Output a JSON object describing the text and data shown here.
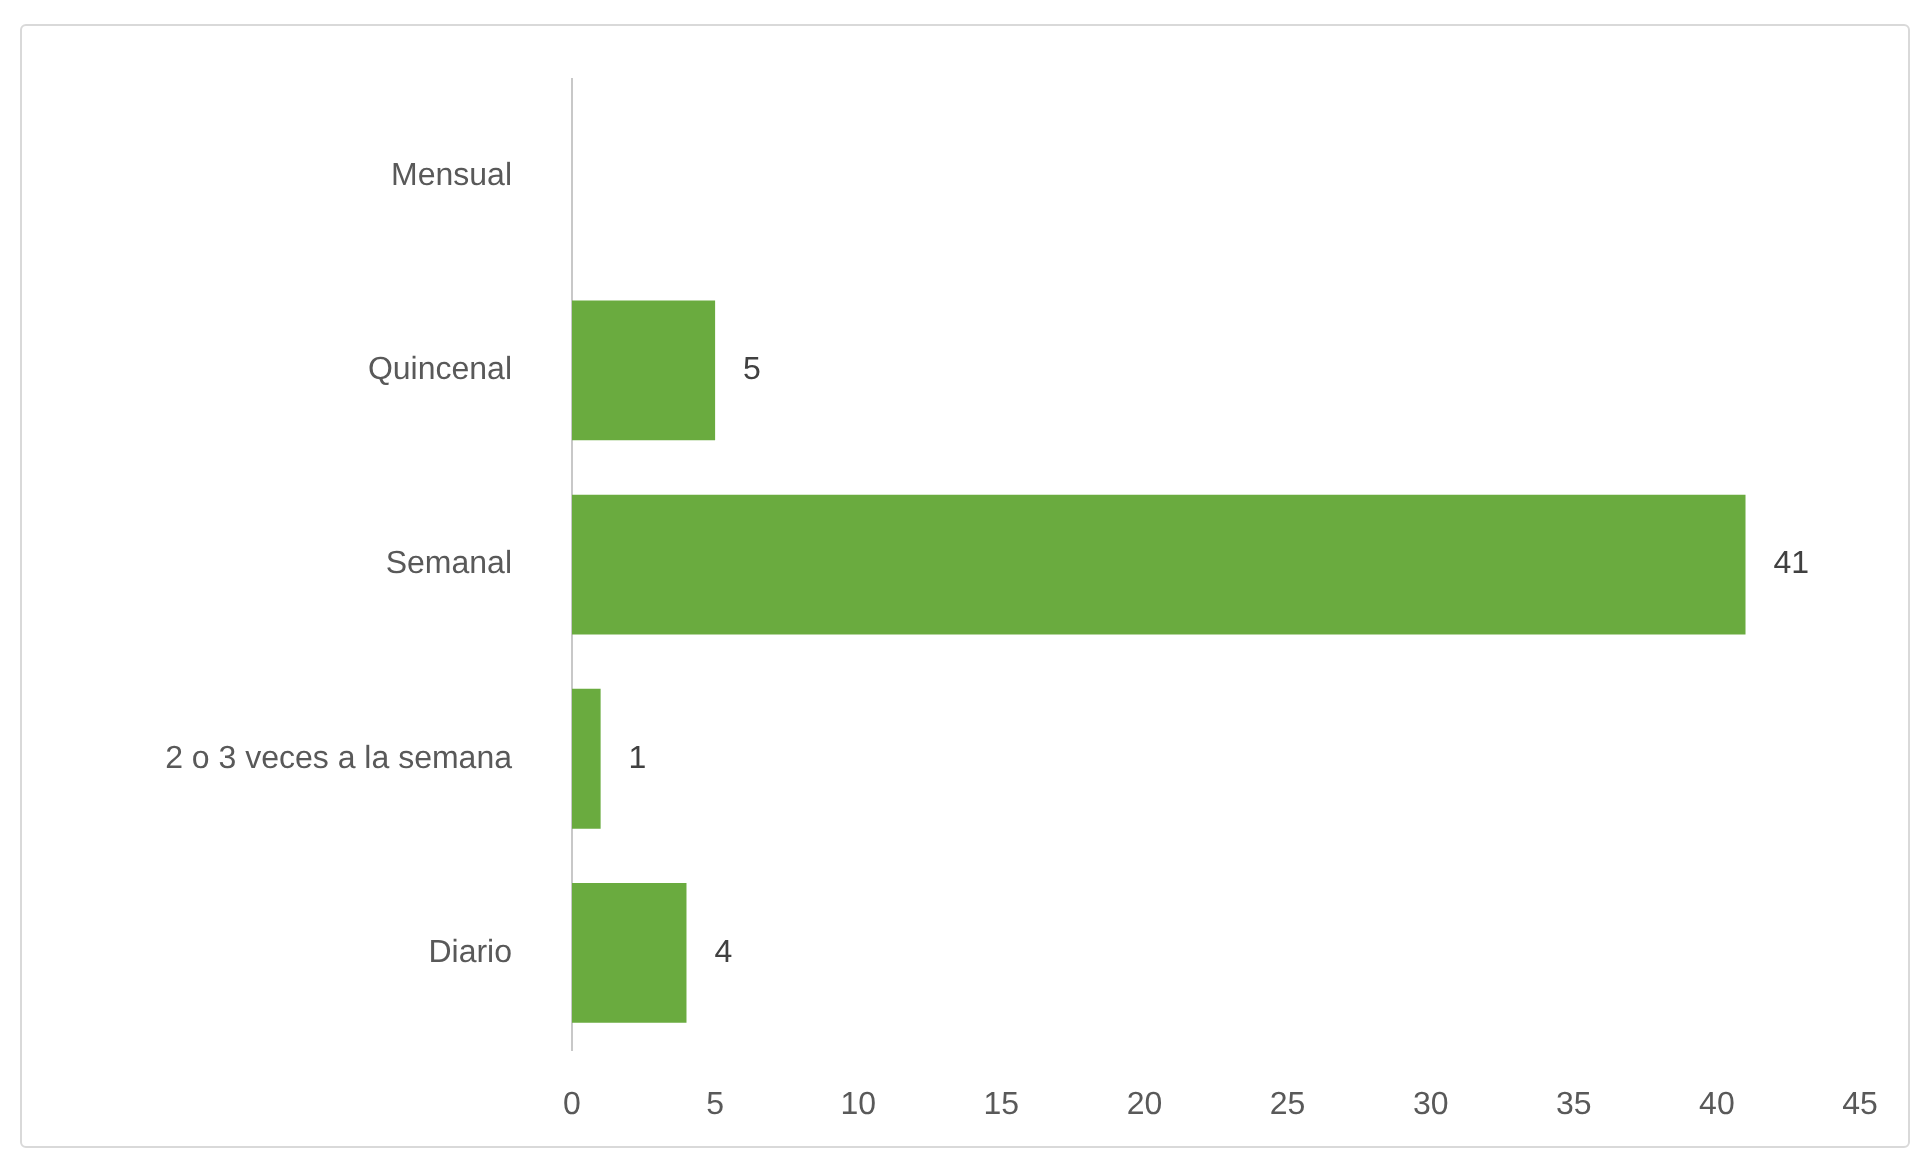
{
  "chart_data": {
    "type": "bar",
    "orientation": "horizontal",
    "categories": [
      "Mensual",
      "Quincenal",
      "Semanal",
      "2 o 3 veces a la semana",
      "Diario"
    ],
    "values": [
      null,
      5,
      41,
      1,
      4
    ],
    "color": "#6aab3f",
    "xlim": [
      0,
      45
    ],
    "xticks": [
      0,
      5,
      10,
      15,
      20,
      25,
      30,
      35,
      40,
      45
    ],
    "data_labels": true
  }
}
